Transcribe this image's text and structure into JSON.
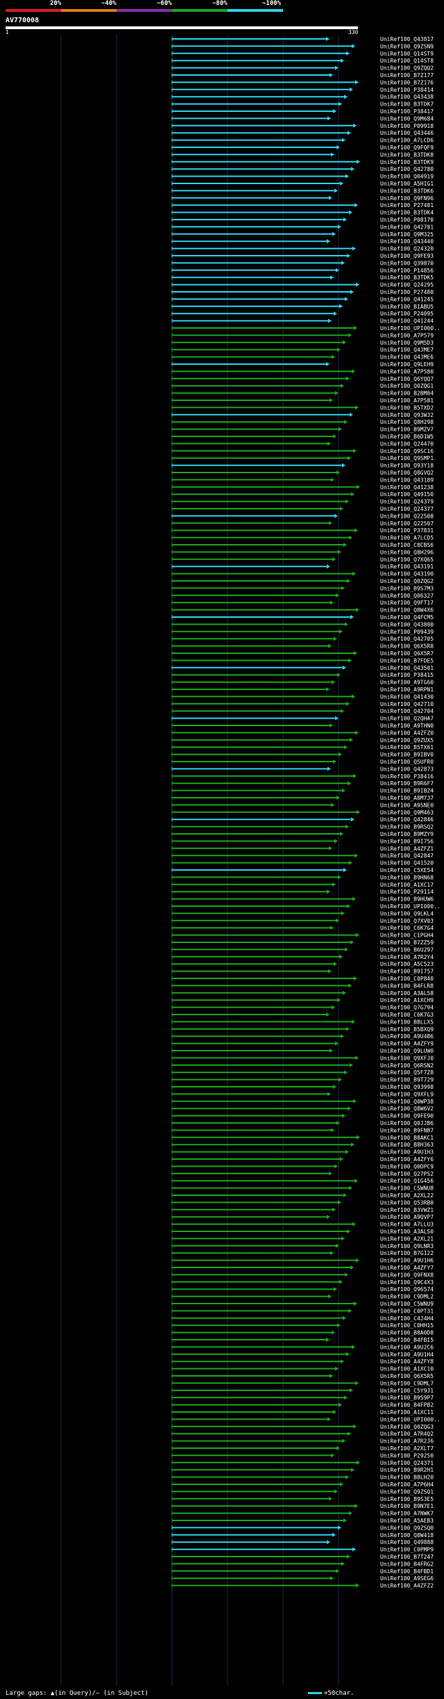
{
  "legend": {
    "labels": [
      "20%",
      "~40%",
      "~60%",
      "~80%",
      "~100%"
    ],
    "colors": [
      "#d81c24",
      "#e07a1d",
      "#8a2db0",
      "#1aa71a",
      "#2cd3ea"
    ]
  },
  "query": {
    "name": "AV770008",
    "start": "1",
    "end": "330"
  },
  "hits": [
    "UniRef100_Q43817",
    "UniRef100_Q9ZSN9",
    "UniRef100_Q14ST9",
    "UniRef100_Q14ST8",
    "UniRef100_Q9ZQQ2",
    "UniRef100_B7Z177",
    "UniRef100_B7Z176",
    "UniRef100_P38414",
    "UniRef100_Q43438",
    "UniRef100_B3TDK7",
    "UniRef100_P38417",
    "UniRef100_Q9M684",
    "UniRef100_P09918",
    "UniRef100_Q43446",
    "UniRef100_A7LCD6",
    "UniRef100_Q9FQF9",
    "UniRef100_B3TDK8",
    "UniRef100_B3TDK9",
    "UniRef100_Q42780",
    "UniRef100_Q04919",
    "UniRef100_A5HIG1",
    "UniRef100_B3TDK6",
    "UniRef100_Q9FN96",
    "UniRef100_P27481",
    "UniRef100_B3TDK4",
    "UniRef100_P08170",
    "UniRef100_Q42781",
    "UniRef100_Q9M325",
    "UniRef100_Q43440",
    "UniRef100_Q24320",
    "UniRef100_Q9FE93",
    "UniRef100_Q39870",
    "UniRef100_P14856",
    "UniRef100_B3TDK5",
    "UniRef100_Q24295",
    "UniRef100_P27480",
    "UniRef100_Q41245",
    "UniRef100_B1ABU5",
    "UniRef100_P24095",
    "UniRef100_Q41244",
    "UniRef100_UPI000..",
    "UniRef100_A7P579",
    "UniRef100_Q9M5D3",
    "UniRef100_Q4JME7",
    "UniRef100_Q4JME6",
    "UniRef100_Q9LEH9",
    "UniRef100_A7P580",
    "UniRef100_Q6YQQ7",
    "UniRef100_Q0ZQG1",
    "UniRef100_B2BM04",
    "UniRef100_A7P581",
    "UniRef100_B5TXD2",
    "UniRef100_Q93WJ2",
    "UniRef100_Q8H298",
    "UniRef100_B9MZV7",
    "UniRef100_B6D1W5",
    "UniRef100_Q24470",
    "UniRef100_Q9SC16",
    "UniRef100_Q9SMP1",
    "UniRef100_Q93Y18",
    "UniRef100_Q8GVQ2",
    "UniRef100_Q43189",
    "UniRef100_Q41238",
    "UniRef100_Q49I50",
    "UniRef100_Q24379",
    "UniRef100_Q24377",
    "UniRef100_Q22508",
    "UniRef100_Q22507",
    "UniRef100_P37831",
    "UniRef100_A7LCD5",
    "UniRef100_C8CBS6",
    "UniRef100_Q8H296",
    "UniRef100_Q7XQ65",
    "UniRef100_Q43191",
    "UniRef100_Q43190",
    "UniRef100_Q0ZQG2",
    "UniRef100_B9S7M3",
    "UniRef100_Q06327",
    "UniRef100_Q9FT17",
    "UniRef100_Q8W4X6",
    "UniRef100_Q4FCM5",
    "UniRef100_Q43800",
    "UniRef100_P09439",
    "UniRef100_Q42705",
    "UniRef100_Q6X5R8",
    "UniRef100_Q6X5R7",
    "UniRef100_B7FDE5",
    "UniRef100_Q43501",
    "UniRef100_P38415",
    "UniRef100_A9TG60",
    "UniRef100_A9RPN1",
    "UniRef100_Q41430",
    "UniRef100_Q42710",
    "UniRef100_Q42704",
    "UniRef100_Q2QHA7",
    "UniRef100_A9THN0",
    "UniRef100_A4ZFZ0",
    "UniRef100_Q9ZUX5",
    "UniRef100_B5TX61",
    "UniRef100_B9IBV0",
    "UniRef100_Q5UFR0",
    "UniRef100_Q42873",
    "UniRef100_P38416",
    "UniRef100_B9R6F7",
    "UniRef100_B9IB24",
    "UniRef100_A8M7J7",
    "UniRef100_A9SNE0",
    "UniRef100_Q9M463",
    "UniRef100_Q42846",
    "UniRef100_B9RSQ2",
    "UniRef100_B9MZY9",
    "UniRef100_B9I756",
    "UniRef100_A4ZFZ1",
    "UniRef100_Q42847",
    "UniRef100_Q41520",
    "UniRef100_C5XE54",
    "UniRef100_B9HN68",
    "UniRef100_A1XC17",
    "UniRef100_P29114",
    "UniRef100_B9HUW6",
    "UniRef100_UPI000..",
    "UniRef100_Q9LKL4",
    "UniRef100_Q7XV03",
    "UniRef100_C6K7G4",
    "UniRef100_C1PGH4",
    "UniRef100_B7ZZ59",
    "UniRef100_B6U297",
    "UniRef100_A7R2Y4",
    "UniRef100_A5C523",
    "UniRef100_B9I757",
    "UniRef100_C0P840",
    "UniRef100_B4FLR8",
    "UniRef100_A3AL58",
    "UniRef100_A1XCH9",
    "UniRef100_Q7G794",
    "UniRef100_C6K7G3",
    "UniRef100_B8LLX5",
    "UniRef100_B5BXQ9",
    "UniRef100_A9U4B6",
    "UniRef100_A4ZFY9",
    "UniRef100_Q9LUW0",
    "UniRef100_Q9XFJ0",
    "UniRef100_Q6RSN2",
    "UniRef100_Q5F7Z8",
    "UniRef100_B9T729",
    "UniRef100_Q93998",
    "UniRef100_Q9XFL9",
    "UniRef100_Q0WP38",
    "UniRef100_Q8W6V2",
    "UniRef100_Q9FE90",
    "UniRef100_Q0JJB6",
    "UniRef100_B9FNB7",
    "UniRef100_B8AKC1",
    "UniRef100_B8H363",
    "UniRef100_A9U1H3",
    "UniRef100_A4ZFY6",
    "UniRef100_Q0DPC9",
    "UniRef100_Q27PS2",
    "UniRef100_Q1G456",
    "UniRef100_C5WNU8",
    "UniRef100_A2XL22",
    "UniRef100_Q53RB0",
    "UniRef100_B3VWZ1",
    "UniRef100_A9QVP7",
    "UniRef100_A7LLU3",
    "UniRef100_A3ALS0",
    "UniRef100_A2XL21",
    "UniRef100_Q9LNR3",
    "UniRef100_B7G122",
    "UniRef100_A9U1H6",
    "UniRef100_A4ZFY7",
    "UniRef100_Q9FNX8",
    "UniRef100_Q9C4X3",
    "UniRef100_Q96574",
    "UniRef100_C9DML2",
    "UniRef100_C5WNU9",
    "UniRef100_C0PT31",
    "UniRef100_C4J4H4",
    "UniRef100_C0HH15",
    "UniRef100_B8A0D8",
    "UniRef100_B4FBI5",
    "UniRef100_A9U2C6",
    "UniRef100_A9U1H4",
    "UniRef100_A4ZFY8",
    "UniRef100_A1XC10",
    "UniRef100_Q6X5R5",
    "UniRef100_C9DML7",
    "UniRef100_C5Y9J1",
    "UniRef100_B9S9P7",
    "UniRef100_B4FPB2",
    "UniRef100_A1XC11",
    "UniRef100_UPI000..",
    "UniRef100_Q0ZQG3",
    "UniRef100_A7R4Q2",
    "UniRef100_A7R2J6",
    "UniRef100_A2XLT7",
    "UniRef100_P29250",
    "UniRef100_Q24371",
    "UniRef100_B9R2H1",
    "UniRef100_B8LH20",
    "UniRef100_A7P6H4",
    "UniRef100_Q9ZSQ1",
    "UniRef100_B9S3E5",
    "UniRef100_B9N7E1",
    "UniRef100_A7NWK7",
    "UniRef100_A5AEB3",
    "UniRef100_Q9ZSQ0",
    "UniRef100_Q8W418",
    "UniRef100_Q49888",
    "UniRef100_C0PMP9",
    "UniRef100_B7T247",
    "UniRef100_B4FRG2",
    "UniRef100_B4FBD1",
    "UniRef100_A9SEG6",
    "UniRef100_A4ZFZ2"
  ],
  "footer": {
    "left": "Large gaps: ▲(in Query)/— (in Subject)",
    "right": "=50char."
  }
}
